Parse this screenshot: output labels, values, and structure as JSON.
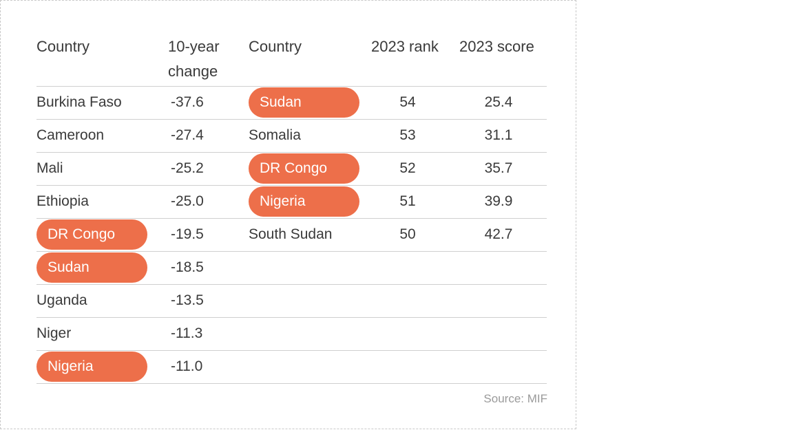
{
  "headers": {
    "left_country": "Country",
    "change": "10-year change",
    "change_line1": "10-year",
    "change_line2": "change",
    "right_country": "Country",
    "rank": "2023 rank",
    "score": "2023 score"
  },
  "left_rows": [
    {
      "country": "Burkina Faso",
      "change": "-37.6",
      "highlight": false
    },
    {
      "country": "Cameroon",
      "change": "-27.4",
      "highlight": false
    },
    {
      "country": "Mali",
      "change": "-25.2",
      "highlight": false
    },
    {
      "country": "Ethiopia",
      "change": "-25.0",
      "highlight": false
    },
    {
      "country": "DR Congo",
      "change": "-19.5",
      "highlight": true
    },
    {
      "country": "Sudan",
      "change": "-18.5",
      "highlight": true
    },
    {
      "country": "Uganda",
      "change": "-13.5",
      "highlight": false
    },
    {
      "country": "Niger",
      "change": "-11.3",
      "highlight": false
    },
    {
      "country": "Nigeria",
      "change": "-11.0",
      "highlight": true
    }
  ],
  "right_rows": [
    {
      "country": "Sudan",
      "rank": "54",
      "score": "25.4",
      "highlight": true
    },
    {
      "country": "Somalia",
      "rank": "53",
      "score": "31.1",
      "highlight": false
    },
    {
      "country": "DR Congo",
      "rank": "52",
      "score": "35.7",
      "highlight": true
    },
    {
      "country": "Nigeria",
      "rank": "51",
      "score": "39.9",
      "highlight": true
    },
    {
      "country": "South Sudan",
      "rank": "50",
      "score": "42.7",
      "highlight": false
    }
  ],
  "colors": {
    "highlight": "#ed6f4a",
    "text": "#3a3a3a",
    "rule": "#cfcfcf"
  },
  "source": "Source: MIF"
}
